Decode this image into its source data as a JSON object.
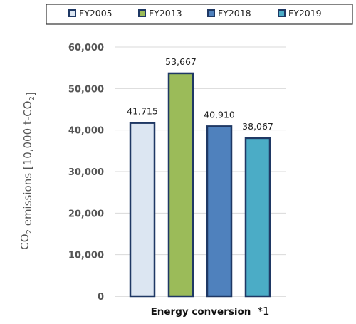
{
  "chart_data": {
    "type": "bar",
    "categories": [
      "Energy conversion"
    ],
    "series": [
      {
        "name": "FY2005",
        "values": [
          41715
        ],
        "color": "#dce6f2",
        "label": "41,715"
      },
      {
        "name": "FY2013",
        "values": [
          53667
        ],
        "color": "#9bbb59",
        "label": "53,667"
      },
      {
        "name": "FY2018",
        "values": [
          40910
        ],
        "color": "#4f81bd",
        "label": "40,910"
      },
      {
        "name": "FY2019",
        "values": [
          38067
        ],
        "color": "#4bacc6",
        "label": "38,067"
      }
    ],
    "category_note": "*1",
    "ylabel_text": "CO",
    "ylabel_sub": "2",
    "ylabel_rest": " emissions [10,000 t-CO",
    "ylabel_sub2": "2",
    "ylabel_end": "]",
    "ylim": [
      0,
      60000
    ],
    "yticks": [
      0,
      10000,
      20000,
      30000,
      40000,
      50000,
      60000
    ],
    "ytick_labels": [
      "0",
      "10,000",
      "20,000",
      "30,000",
      "40,000",
      "50,000",
      "60,000"
    ],
    "grid": true,
    "legend_position": "top",
    "bar_edge_color": "#1f3864"
  }
}
